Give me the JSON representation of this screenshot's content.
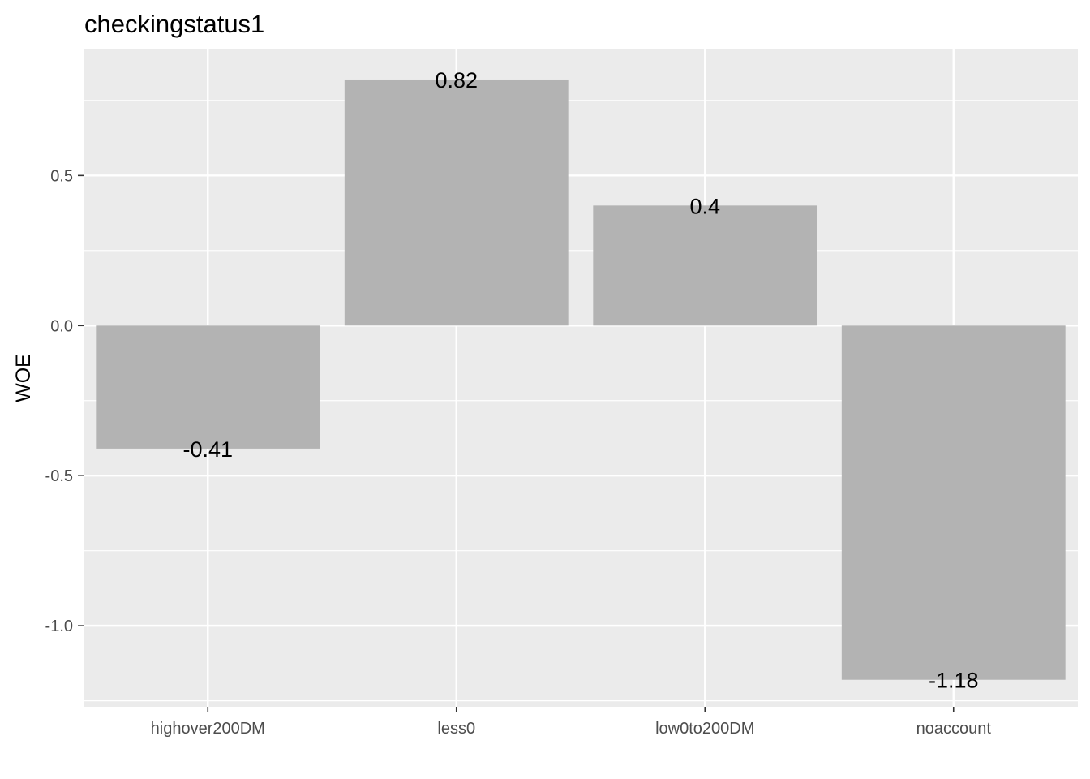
{
  "chart_data": {
    "type": "bar",
    "title": "checkingstatus1",
    "xlabel": "",
    "ylabel": "WOE",
    "categories": [
      "highover200DM",
      "less0",
      "low0to200DM",
      "noaccount"
    ],
    "values": [
      -0.41,
      0.82,
      0.4,
      -1.18
    ],
    "data_labels": [
      "-0.41",
      "0.82",
      "0.4",
      "-1.18"
    ],
    "ylim": [
      -1.27,
      0.92
    ],
    "yticks": [
      -1.0,
      -0.5,
      0.0,
      0.5
    ],
    "ytick_labels": [
      "-1.0",
      "-0.5",
      "0.0",
      "0.5"
    ],
    "grid": true,
    "legend": "none",
    "colors": {
      "panel": "#ebebeb",
      "bar": "#b3b3b3",
      "grid": "#ffffff",
      "tick_text": "#4d4d4d",
      "text": "#000000"
    }
  }
}
